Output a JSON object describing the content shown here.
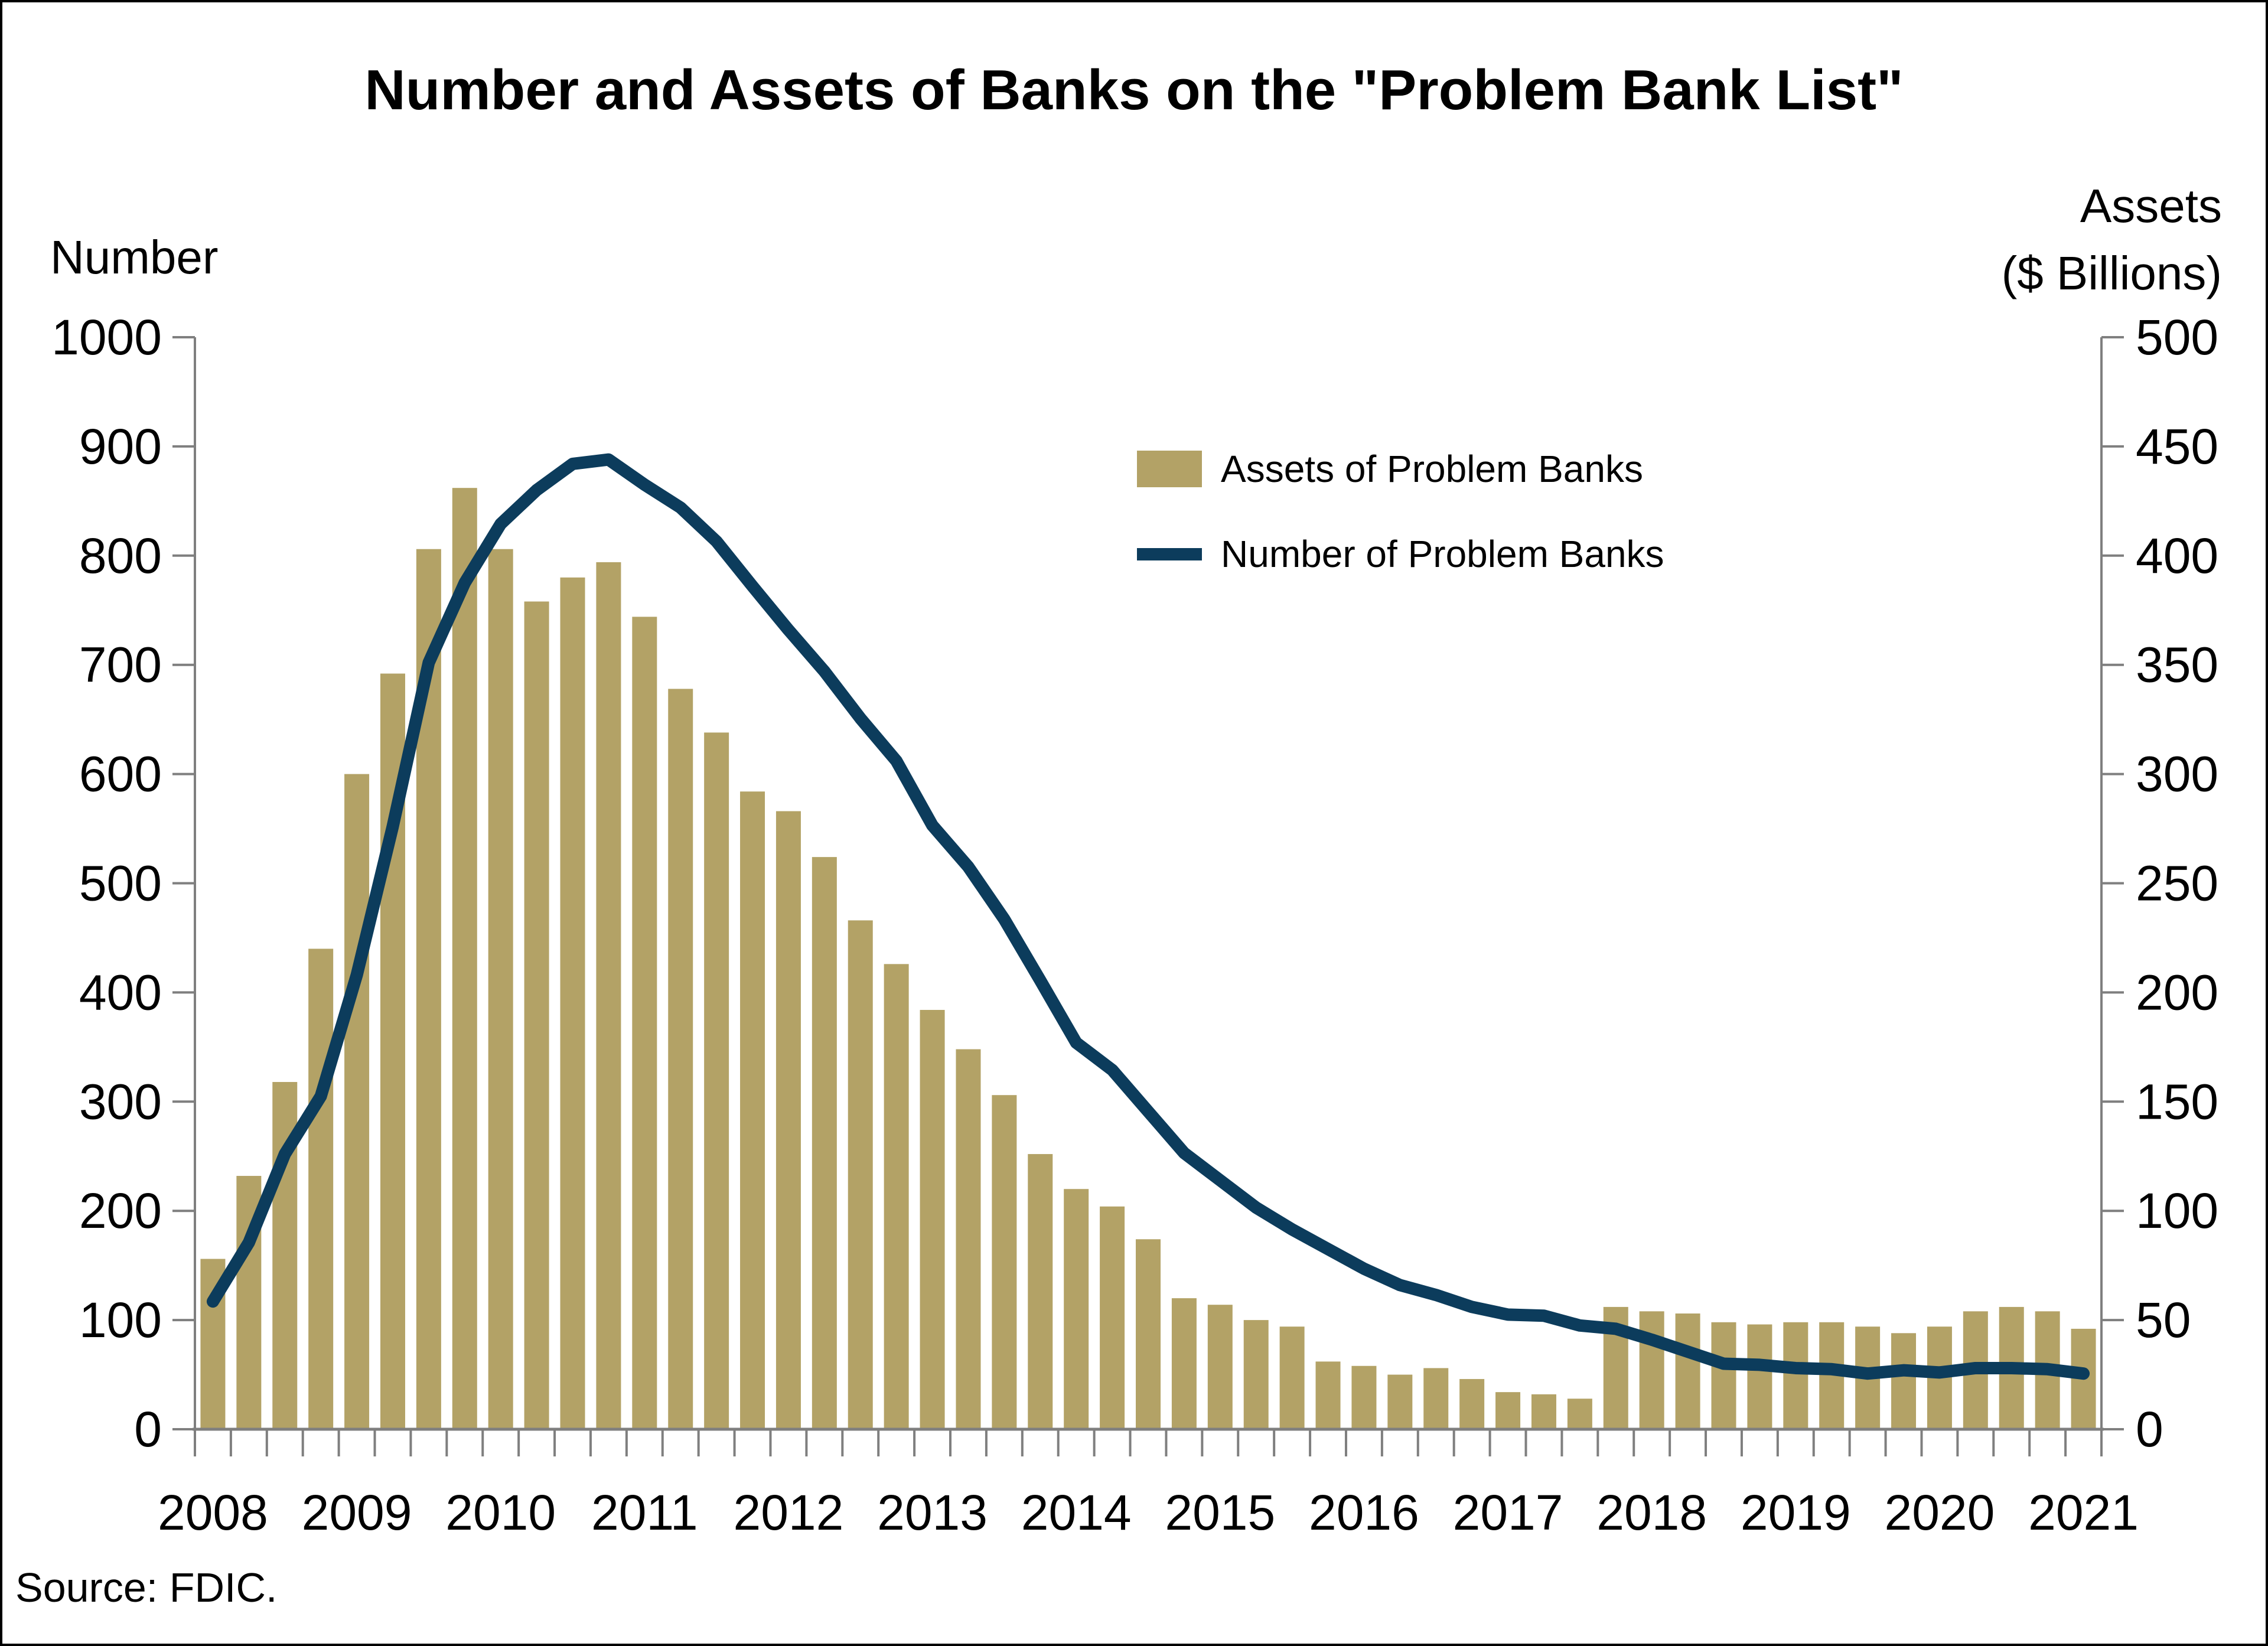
{
  "title": "Number and Assets of Banks on the \"Problem Bank List\"",
  "source": "Source: FDIC.",
  "colors": {
    "bar": "#B3A266",
    "line": "#0C3C5C",
    "axis": "#7F7F7F",
    "text": "#000000",
    "background": "#FFFFFF"
  },
  "legend": {
    "items": [
      {
        "label": "Assets of Problem Banks",
        "type": "bar"
      },
      {
        "label": "Number of Problem Banks",
        "type": "line"
      }
    ],
    "position": "inside-top-center"
  },
  "chart_data": {
    "type": "bar+line",
    "title": "Number and Assets of Banks on the \"Problem Bank List\"",
    "grid": false,
    "left_axis": {
      "title": "Number",
      "min": 0,
      "max": 1000,
      "step": 100,
      "ticks": [
        0,
        100,
        200,
        300,
        400,
        500,
        600,
        700,
        800,
        900,
        1000
      ]
    },
    "right_axis": {
      "title_line1": "Assets",
      "title_line2": "($ Billions)",
      "min": 0,
      "max": 500,
      "step": 50,
      "ticks": [
        0,
        50,
        100,
        150,
        200,
        250,
        300,
        350,
        400,
        450,
        500
      ]
    },
    "x_year_labels": [
      "2008",
      "2009",
      "2010",
      "2011",
      "2012",
      "2013",
      "2014",
      "2015",
      "2016",
      "2017",
      "2018",
      "2019",
      "2020",
      "2021"
    ],
    "quarters": [
      "2008Q2",
      "2008Q3",
      "2008Q4",
      "2009Q1",
      "2009Q2",
      "2009Q3",
      "2009Q4",
      "2010Q1",
      "2010Q2",
      "2010Q3",
      "2010Q4",
      "2011Q1",
      "2011Q2",
      "2011Q3",
      "2011Q4",
      "2012Q1",
      "2012Q2",
      "2012Q3",
      "2012Q4",
      "2013Q1",
      "2013Q2",
      "2013Q3",
      "2013Q4",
      "2014Q1",
      "2014Q2",
      "2014Q3",
      "2014Q4",
      "2015Q1",
      "2015Q2",
      "2015Q3",
      "2015Q4",
      "2016Q1",
      "2016Q2",
      "2016Q3",
      "2016Q4",
      "2017Q1",
      "2017Q2",
      "2017Q3",
      "2017Q4",
      "2018Q1",
      "2018Q2",
      "2018Q3",
      "2018Q4",
      "2019Q1",
      "2019Q2",
      "2019Q3",
      "2019Q4",
      "2020Q1",
      "2020Q2",
      "2020Q3",
      "2020Q4",
      "2021Q1",
      "2021Q2"
    ],
    "series": [
      {
        "name": "Assets of Problem Banks",
        "type": "bar",
        "axis": "right",
        "values": [
          78,
          116,
          159,
          220,
          300,
          346,
          403,
          431,
          403,
          379,
          390,
          397,
          372,
          339,
          319,
          292,
          283,
          262,
          233,
          213,
          192,
          174,
          153,
          126,
          110,
          102,
          87,
          60,
          57,
          50,
          47,
          31,
          29,
          25,
          28,
          23,
          17,
          16,
          14,
          56,
          54,
          53,
          49,
          48,
          49,
          49,
          47,
          44,
          47,
          54,
          56,
          54,
          46
        ]
      },
      {
        "name": "Number of Problem Banks",
        "type": "line",
        "axis": "left",
        "values": [
          117,
          171,
          252,
          305,
          416,
          552,
          702,
          775,
          829,
          860,
          884,
          888,
          865,
          844,
          813,
          772,
          732,
          694,
          651,
          612,
          553,
          515,
          467,
          411,
          354,
          329,
          291,
          253,
          228,
          203,
          183,
          165,
          147,
          132,
          123,
          112,
          105,
          104,
          95,
          92,
          82,
          71,
          60,
          59,
          56,
          55,
          51,
          54,
          52,
          56,
          56,
          55,
          51
        ]
      }
    ]
  }
}
